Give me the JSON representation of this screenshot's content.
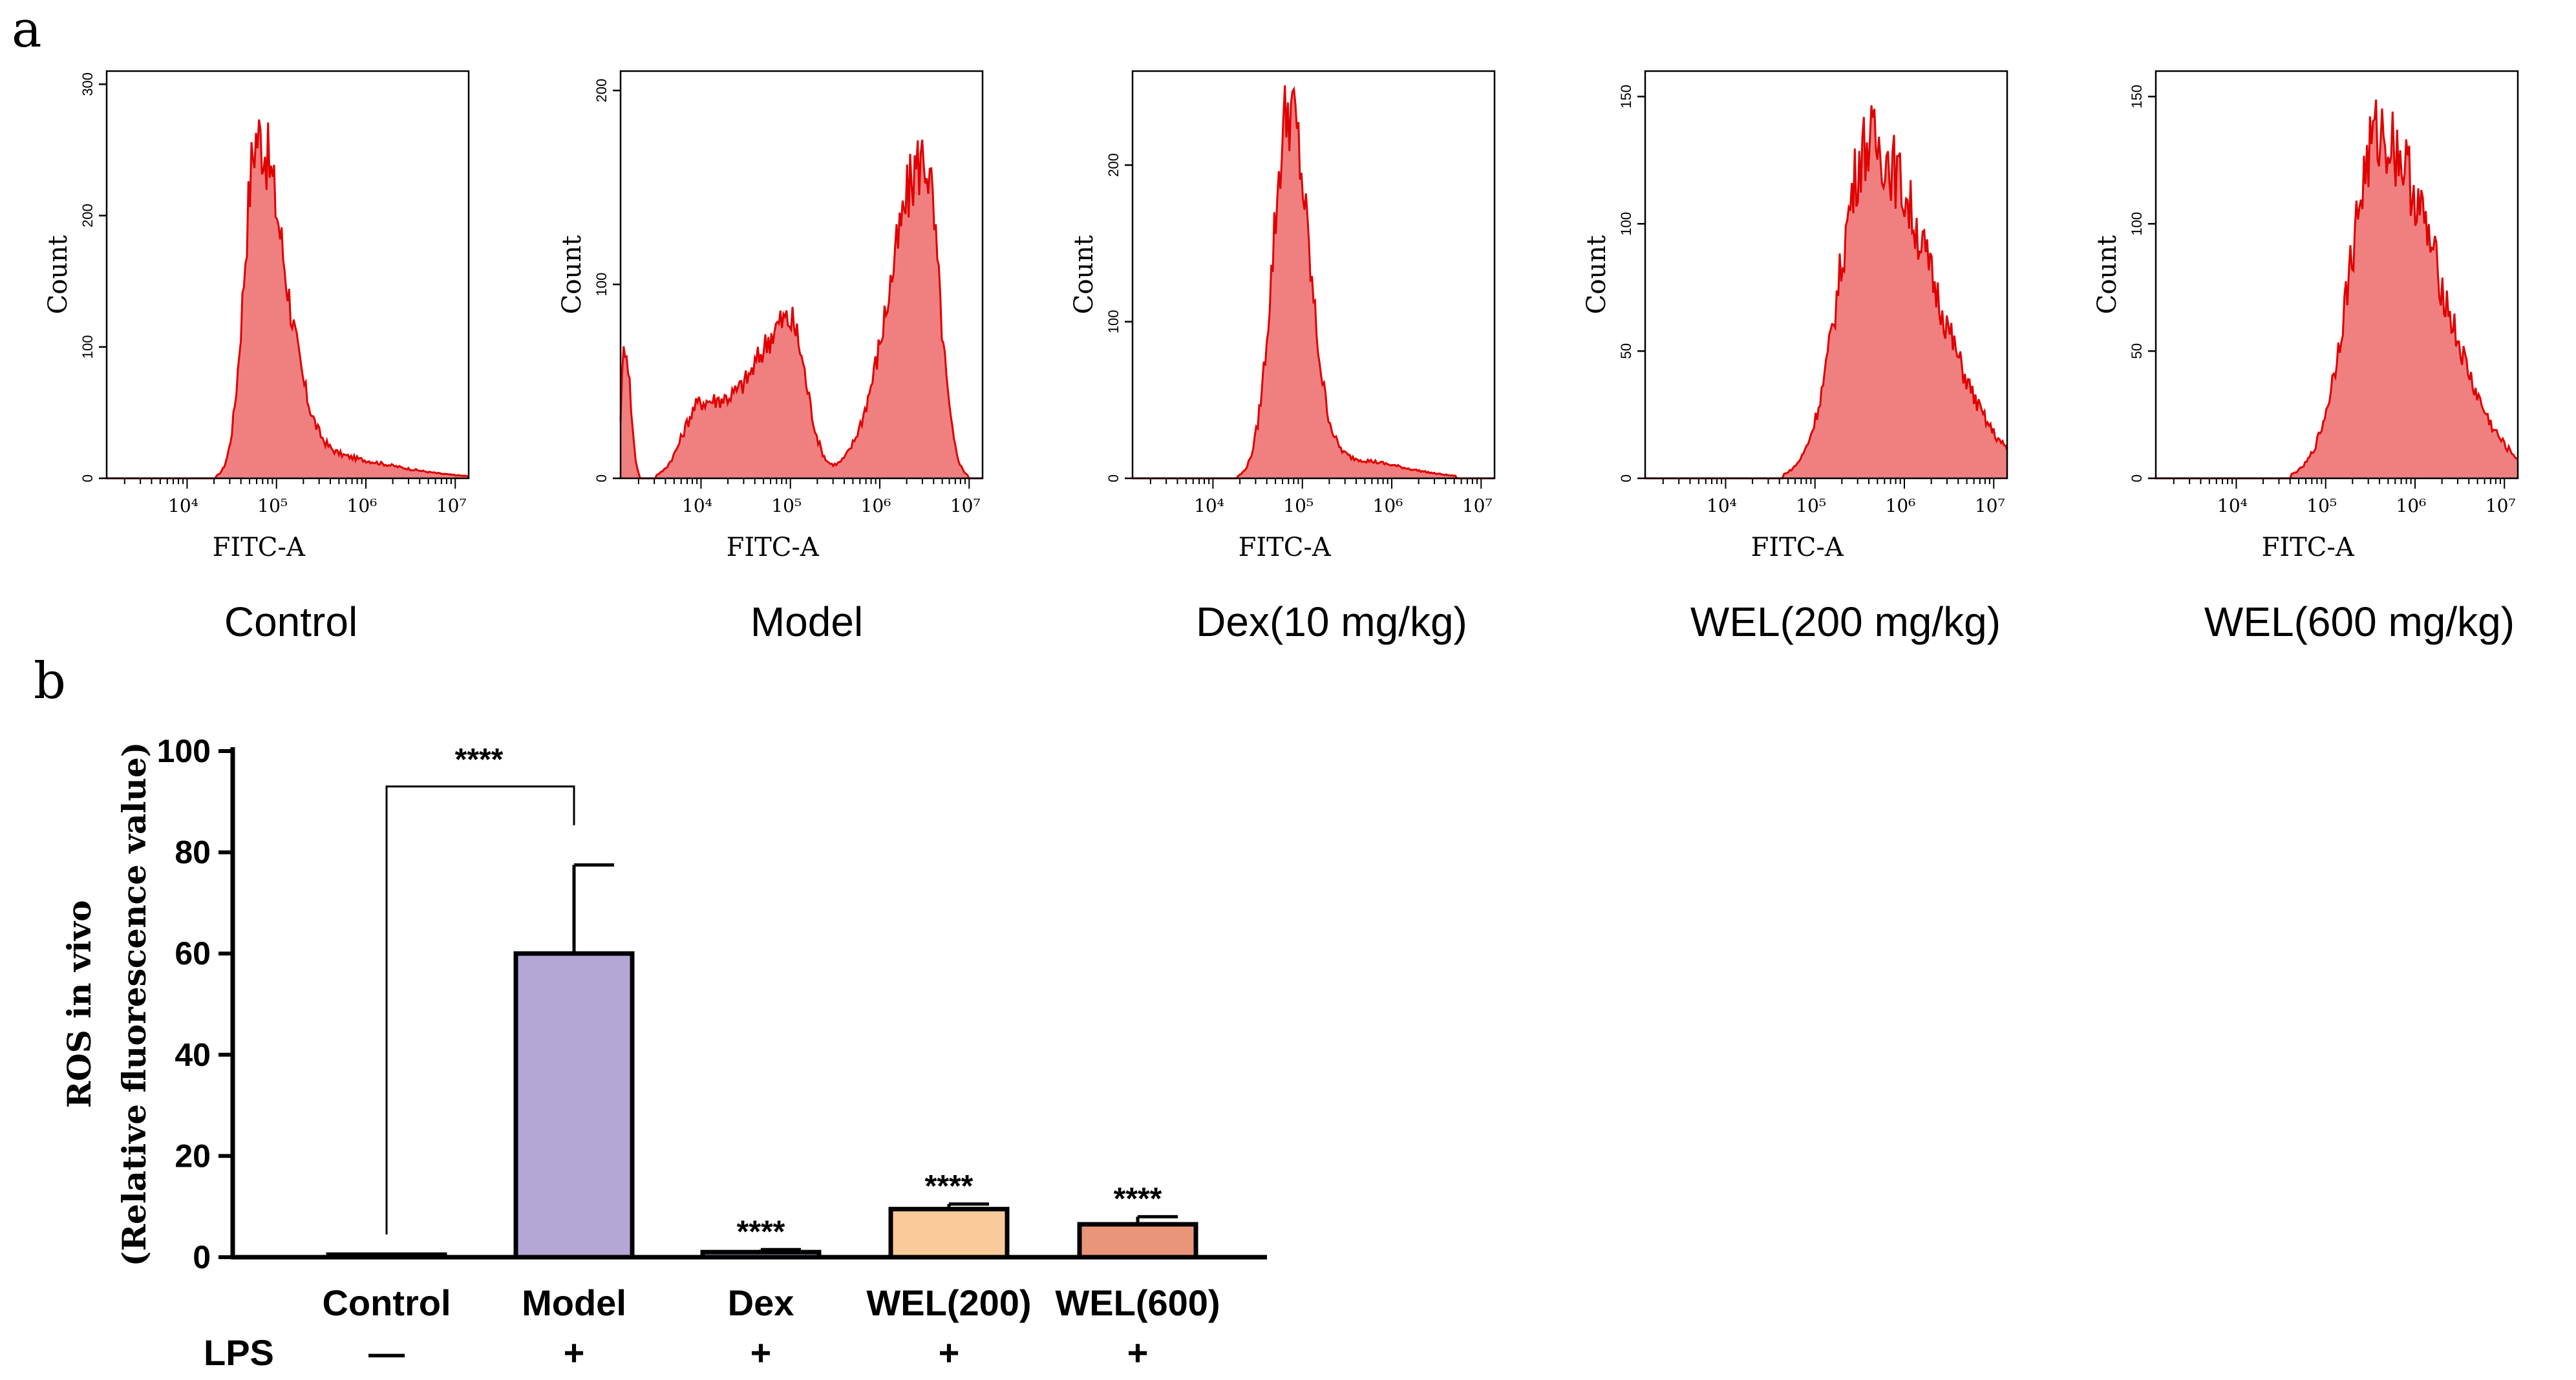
{
  "panel_labels": {
    "a": "a",
    "b": "b"
  },
  "colors": {
    "hist_fill": "#f08080",
    "hist_line": "#e00000",
    "bar_control": "#ffffff",
    "bar_model": "#b4a7d6",
    "bar_dex": "#b4a7d6",
    "bar_wel200": "#f9cb9c",
    "bar_wel600": "#e8957a"
  },
  "chart_data": [
    {
      "type": "histogram",
      "panel": "a",
      "title": "Control",
      "xlabel": "FITC-A",
      "ylabel": "Count",
      "x_scale": "log10",
      "xlim_log10": [
        3.1,
        7.15
      ],
      "x_ticks": [
        "10⁴",
        "10⁵",
        "10⁶",
        "10⁷"
      ],
      "x_tick_exponents": [
        4,
        5,
        6,
        7
      ],
      "ylim": [
        0,
        310
      ],
      "y_ticks": [
        0,
        100,
        200,
        300
      ],
      "components": [
        {
          "mu": 4.78,
          "sig_l": 0.14,
          "sig_r": 0.3,
          "amp": 255
        },
        {
          "mu": 5.4,
          "sig_l": 0.4,
          "sig_r": 0.8,
          "amp": 18
        }
      ],
      "peak_count": 268
    },
    {
      "type": "histogram",
      "panel": "a",
      "title": "Model",
      "xlabel": "FITC-A",
      "ylabel": "Count",
      "x_scale": "log10",
      "xlim_log10": [
        3.1,
        7.15
      ],
      "x_ticks": [
        "10⁴",
        "10⁵",
        "10⁶",
        "10⁷"
      ],
      "x_tick_exponents": [
        4,
        5,
        6,
        7
      ],
      "ylim": [
        0,
        210
      ],
      "y_ticks": [
        0,
        100,
        200
      ],
      "components": [
        {
          "mu": 4.0,
          "sig_l": 0.2,
          "sig_r": 0.5,
          "amp": 38
        },
        {
          "mu": 5.0,
          "sig_l": 0.35,
          "sig_r": 0.18,
          "amp": 76
        },
        {
          "mu": 6.5,
          "sig_l": 0.38,
          "sig_r": 0.16,
          "amp": 165
        },
        {
          "mu": 3.15,
          "sig_l": 0.04,
          "sig_r": 0.06,
          "amp": 70
        }
      ],
      "peak_count": 175
    },
    {
      "type": "histogram",
      "panel": "a",
      "title": "Dex(10 mg/kg)",
      "xlabel": "FITC-A",
      "ylabel": "Count",
      "x_scale": "log10",
      "xlim_log10": [
        3.1,
        7.15
      ],
      "x_ticks": [
        "10⁴",
        "10⁵",
        "10⁶",
        "10⁷"
      ],
      "x_tick_exponents": [
        4,
        5,
        6,
        7
      ],
      "ylim": [
        0,
        260
      ],
      "y_ticks": [
        0,
        100,
        200
      ],
      "components": [
        {
          "mu": 4.85,
          "sig_l": 0.18,
          "sig_r": 0.22,
          "amp": 235
        },
        {
          "mu": 5.5,
          "sig_l": 0.3,
          "sig_r": 0.6,
          "amp": 12
        }
      ],
      "peak_count": 248
    },
    {
      "type": "histogram",
      "panel": "a",
      "title": "WEL(200 mg/kg)",
      "xlabel": "FITC-A",
      "ylabel": "Count",
      "x_scale": "log10",
      "xlim_log10": [
        3.1,
        7.15
      ],
      "x_ticks": [
        "10⁴",
        "10⁵",
        "10⁶",
        "10⁷"
      ],
      "x_tick_exponents": [
        4,
        5,
        6,
        7
      ],
      "ylim": [
        0,
        160
      ],
      "y_ticks": [
        0,
        50,
        100,
        150
      ],
      "components": [
        {
          "mu": 5.6,
          "sig_l": 0.32,
          "sig_r": 0.7,
          "amp": 132
        }
      ],
      "peak_count": 152
    },
    {
      "type": "histogram",
      "panel": "a",
      "title": "WEL(600 mg/kg)",
      "xlabel": "FITC-A",
      "ylabel": "Count",
      "x_scale": "log10",
      "xlim_log10": [
        3.1,
        7.15
      ],
      "x_ticks": [
        "10⁴",
        "10⁵",
        "10⁶",
        "10⁷"
      ],
      "x_tick_exponents": [
        4,
        5,
        6,
        7
      ],
      "ylim": [
        0,
        160
      ],
      "y_ticks": [
        0,
        50,
        100,
        150
      ],
      "components": [
        {
          "mu": 5.6,
          "sig_l": 0.33,
          "sig_r": 0.65,
          "amp": 135
        }
      ],
      "peak_count": 145
    },
    {
      "type": "bar",
      "panel": "b",
      "ylabel_line1": "ROS in vivo",
      "ylabel_line2": "(Relative fluorescence value)",
      "ylim": [
        0,
        100
      ],
      "y_ticks": [
        0,
        20,
        40,
        60,
        80,
        100
      ],
      "categories": [
        "Control",
        "Model",
        "Dex",
        "WEL(200)",
        "WEL(600)"
      ],
      "values": [
        0.5,
        60,
        1,
        9.5,
        6.5
      ],
      "errors": [
        0,
        17.5,
        0.5,
        1,
        1.5
      ],
      "significance": [
        "",
        "",
        "****",
        "****",
        "****"
      ],
      "comparison": {
        "from": "Control",
        "to": "Model",
        "label": "****",
        "y": 93
      },
      "lps_label": "LPS",
      "lps_row": [
        "—",
        "+",
        "+",
        "+",
        "+"
      ]
    }
  ]
}
